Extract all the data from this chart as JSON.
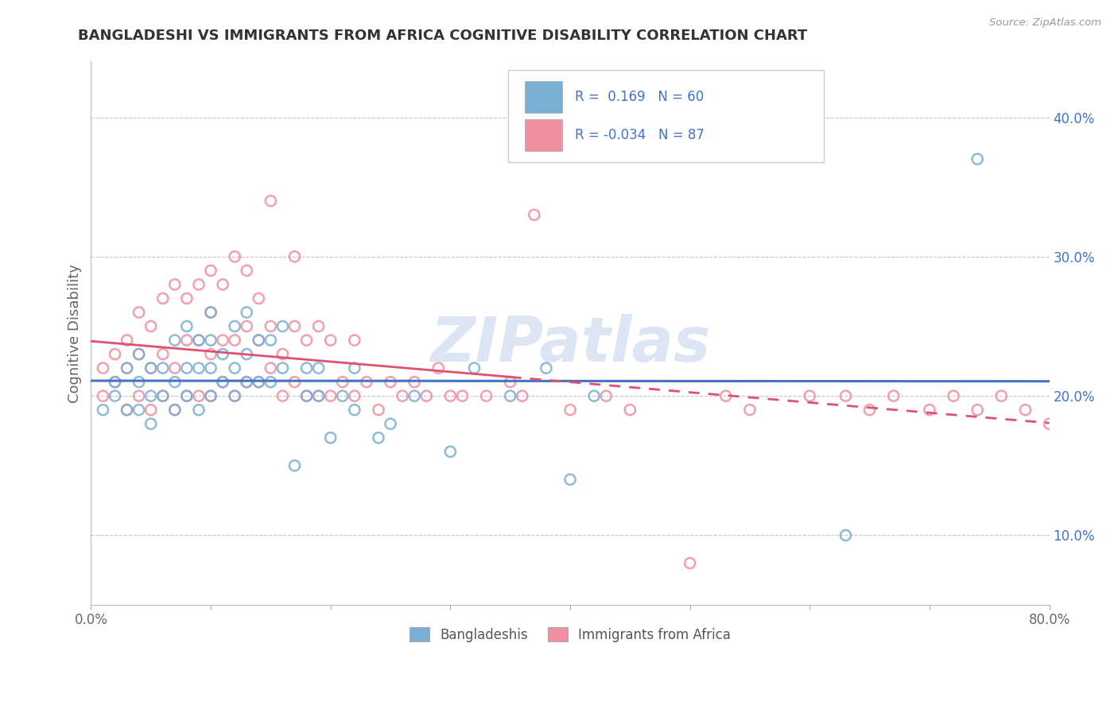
{
  "title": "BANGLADESHI VS IMMIGRANTS FROM AFRICA COGNITIVE DISABILITY CORRELATION CHART",
  "source": "Source: ZipAtlas.com",
  "ylabel": "Cognitive Disability",
  "xlim": [
    0.0,
    0.8
  ],
  "ylim": [
    0.05,
    0.44
  ],
  "y_ticks": [
    0.1,
    0.2,
    0.3,
    0.4
  ],
  "y_tick_labels": [
    "10.0%",
    "20.0%",
    "30.0%",
    "40.0%"
  ],
  "x_ticks": [
    0.0,
    0.1,
    0.2,
    0.3,
    0.4,
    0.5,
    0.6,
    0.7,
    0.8
  ],
  "x_tick_labels": [
    "0.0%",
    "",
    "",
    "",
    "",
    "",
    "",
    "",
    "80.0%"
  ],
  "legend_labels": [
    "Bangladeshis",
    "Immigrants from Africa"
  ],
  "R_bangladeshi": 0.169,
  "N_bangladeshi": 60,
  "R_africa": -0.034,
  "N_africa": 87,
  "bangladeshi_color": "#7bafd4",
  "africa_color": "#f08fa0",
  "bangladeshi_line_color": "#4472c4",
  "africa_line_color": "#e05070",
  "watermark": "ZIPatlas",
  "background_color": "#ffffff",
  "grid_color": "#c0c0c0",
  "bangladeshi_x": [
    0.01,
    0.02,
    0.02,
    0.03,
    0.03,
    0.04,
    0.04,
    0.04,
    0.05,
    0.05,
    0.05,
    0.06,
    0.06,
    0.07,
    0.07,
    0.07,
    0.08,
    0.08,
    0.08,
    0.09,
    0.09,
    0.09,
    0.1,
    0.1,
    0.1,
    0.1,
    0.11,
    0.11,
    0.12,
    0.12,
    0.12,
    0.13,
    0.13,
    0.13,
    0.14,
    0.14,
    0.15,
    0.15,
    0.16,
    0.16,
    0.17,
    0.18,
    0.18,
    0.19,
    0.19,
    0.2,
    0.21,
    0.22,
    0.22,
    0.24,
    0.25,
    0.27,
    0.3,
    0.32,
    0.35,
    0.38,
    0.4,
    0.42,
    0.63,
    0.74
  ],
  "bangladeshi_y": [
    0.19,
    0.21,
    0.2,
    0.22,
    0.19,
    0.21,
    0.19,
    0.23,
    0.2,
    0.22,
    0.18,
    0.2,
    0.22,
    0.19,
    0.21,
    0.24,
    0.2,
    0.22,
    0.25,
    0.19,
    0.22,
    0.24,
    0.2,
    0.22,
    0.24,
    0.26,
    0.21,
    0.23,
    0.2,
    0.22,
    0.25,
    0.21,
    0.23,
    0.26,
    0.21,
    0.24,
    0.21,
    0.24,
    0.22,
    0.25,
    0.15,
    0.2,
    0.22,
    0.2,
    0.22,
    0.17,
    0.2,
    0.19,
    0.22,
    0.17,
    0.18,
    0.2,
    0.16,
    0.22,
    0.2,
    0.22,
    0.14,
    0.2,
    0.1,
    0.37
  ],
  "africa_x": [
    0.01,
    0.01,
    0.02,
    0.02,
    0.03,
    0.03,
    0.03,
    0.04,
    0.04,
    0.04,
    0.05,
    0.05,
    0.05,
    0.06,
    0.06,
    0.06,
    0.07,
    0.07,
    0.07,
    0.08,
    0.08,
    0.08,
    0.09,
    0.09,
    0.09,
    0.1,
    0.1,
    0.1,
    0.1,
    0.11,
    0.11,
    0.11,
    0.12,
    0.12,
    0.12,
    0.13,
    0.13,
    0.13,
    0.14,
    0.14,
    0.14,
    0.15,
    0.15,
    0.15,
    0.16,
    0.16,
    0.17,
    0.17,
    0.17,
    0.18,
    0.18,
    0.19,
    0.19,
    0.2,
    0.2,
    0.21,
    0.22,
    0.22,
    0.23,
    0.24,
    0.25,
    0.26,
    0.27,
    0.28,
    0.29,
    0.3,
    0.31,
    0.33,
    0.35,
    0.36,
    0.37,
    0.4,
    0.43,
    0.45,
    0.5,
    0.53,
    0.55,
    0.6,
    0.63,
    0.65,
    0.67,
    0.7,
    0.72,
    0.74,
    0.76,
    0.78,
    0.8
  ],
  "africa_y": [
    0.2,
    0.22,
    0.21,
    0.23,
    0.19,
    0.22,
    0.24,
    0.2,
    0.23,
    0.26,
    0.19,
    0.22,
    0.25,
    0.2,
    0.23,
    0.27,
    0.19,
    0.22,
    0.28,
    0.2,
    0.24,
    0.27,
    0.2,
    0.24,
    0.28,
    0.2,
    0.23,
    0.26,
    0.29,
    0.21,
    0.24,
    0.28,
    0.2,
    0.24,
    0.3,
    0.21,
    0.25,
    0.29,
    0.21,
    0.24,
    0.27,
    0.22,
    0.25,
    0.34,
    0.2,
    0.23,
    0.21,
    0.25,
    0.3,
    0.2,
    0.24,
    0.2,
    0.25,
    0.2,
    0.24,
    0.21,
    0.2,
    0.24,
    0.21,
    0.19,
    0.21,
    0.2,
    0.21,
    0.2,
    0.22,
    0.2,
    0.2,
    0.2,
    0.21,
    0.2,
    0.33,
    0.19,
    0.2,
    0.19,
    0.08,
    0.2,
    0.19,
    0.2,
    0.2,
    0.19,
    0.2,
    0.19,
    0.2,
    0.19,
    0.2,
    0.19,
    0.18
  ]
}
